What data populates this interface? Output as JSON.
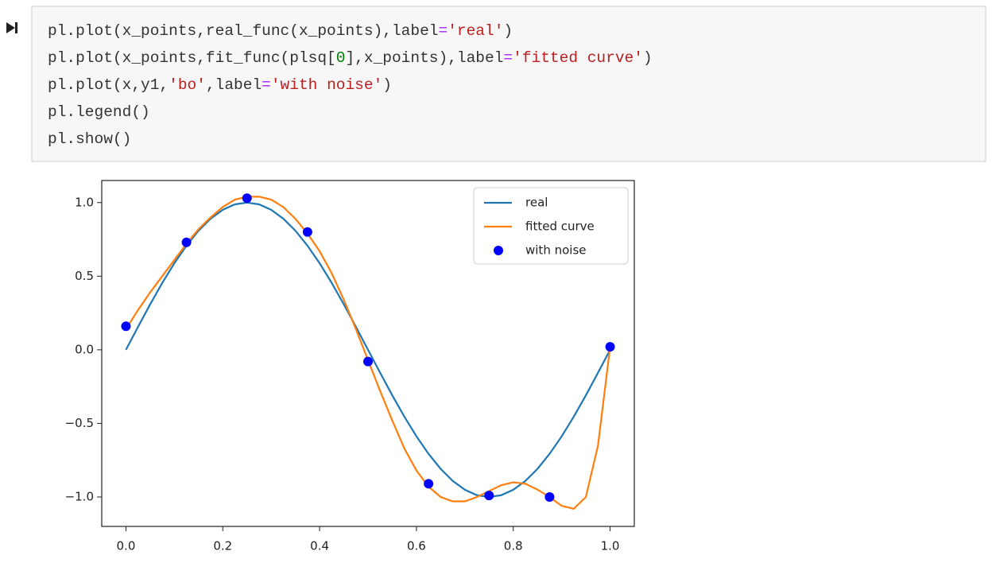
{
  "code": {
    "lines": [
      [
        {
          "text": "pl.plot(x_points,real_func(x_points),label",
          "color": "#333333"
        },
        {
          "text": "=",
          "color": "#aa22ff"
        },
        {
          "text": "'real'",
          "color": "#ba2121"
        },
        {
          "text": ")",
          "color": "#333333"
        }
      ],
      [
        {
          "text": "pl.plot(x_points,fit_func(plsq[",
          "color": "#333333"
        },
        {
          "text": "0",
          "color": "#008000"
        },
        {
          "text": "],x_points),label",
          "color": "#333333"
        },
        {
          "text": "=",
          "color": "#aa22ff"
        },
        {
          "text": "'fitted curve'",
          "color": "#ba2121"
        },
        {
          "text": ")",
          "color": "#333333"
        }
      ],
      [
        {
          "text": "pl.plot(x,y1,",
          "color": "#333333"
        },
        {
          "text": "'bo'",
          "color": "#ba2121"
        },
        {
          "text": ",label",
          "color": "#333333"
        },
        {
          "text": "=",
          "color": "#aa22ff"
        },
        {
          "text": "'with noise'",
          "color": "#ba2121"
        },
        {
          "text": ")",
          "color": "#333333"
        }
      ],
      [
        {
          "text": "pl.legend()",
          "color": "#333333"
        }
      ],
      [
        {
          "text": "pl.show()",
          "color": "#333333"
        }
      ]
    ]
  },
  "chart_data": {
    "type": "line",
    "xlim": [
      -0.05,
      1.05
    ],
    "ylim": [
      -1.2,
      1.15
    ],
    "xticks": [
      {
        "value": 0,
        "label": "0.0"
      },
      {
        "value": 0.2,
        "label": "0.2"
      },
      {
        "value": 0.4,
        "label": "0.4"
      },
      {
        "value": 0.6,
        "label": "0.6"
      },
      {
        "value": 0.8,
        "label": "0.8"
      },
      {
        "value": 1,
        "label": "1.0"
      }
    ],
    "yticks": [
      {
        "value": 1,
        "label": "1.0"
      },
      {
        "value": 0.5,
        "label": "0.5"
      },
      {
        "value": 0,
        "label": "0.0"
      },
      {
        "value": -0.5,
        "label": "−0.5"
      },
      {
        "value": -1,
        "label": "−1.0"
      }
    ],
    "legend": "upper right",
    "series": [
      {
        "name": "real",
        "type": "line",
        "color": "#1f77b4",
        "x": [
          0,
          0.025,
          0.05,
          0.075,
          0.1,
          0.125,
          0.15,
          0.175,
          0.2,
          0.225,
          0.25,
          0.275,
          0.3,
          0.325,
          0.35,
          0.375,
          0.4,
          0.425,
          0.45,
          0.475,
          0.5,
          0.525,
          0.55,
          0.575,
          0.6,
          0.625,
          0.65,
          0.675,
          0.7,
          0.725,
          0.75,
          0.775,
          0.8,
          0.825,
          0.85,
          0.875,
          0.9,
          0.925,
          0.95,
          0.975,
          1
        ],
        "values": [
          0,
          0.156,
          0.309,
          0.454,
          0.588,
          0.707,
          0.809,
          0.891,
          0.951,
          0.988,
          1,
          0.988,
          0.951,
          0.891,
          0.809,
          0.707,
          0.588,
          0.454,
          0.309,
          0.156,
          0,
          -0.156,
          -0.309,
          -0.454,
          -0.588,
          -0.707,
          -0.809,
          -0.891,
          -0.951,
          -0.988,
          -1,
          -0.988,
          -0.951,
          -0.891,
          -0.809,
          -0.707,
          -0.588,
          -0.454,
          -0.309,
          -0.156,
          0
        ]
      },
      {
        "name": "fitted curve",
        "type": "line",
        "color": "#ff7f0e",
        "x": [
          0,
          0.025,
          0.05,
          0.075,
          0.1,
          0.125,
          0.15,
          0.175,
          0.2,
          0.225,
          0.25,
          0.275,
          0.3,
          0.325,
          0.35,
          0.375,
          0.4,
          0.425,
          0.45,
          0.475,
          0.5,
          0.525,
          0.55,
          0.575,
          0.6,
          0.625,
          0.65,
          0.675,
          0.7,
          0.725,
          0.75,
          0.775,
          0.8,
          0.825,
          0.85,
          0.875,
          0.9,
          0.925,
          0.95,
          0.975,
          1
        ],
        "values": [
          0.14,
          0.27,
          0.39,
          0.5,
          0.61,
          0.72,
          0.82,
          0.9,
          0.97,
          1.02,
          1.04,
          1.04,
          1.02,
          0.97,
          0.89,
          0.79,
          0.67,
          0.52,
          0.34,
          0.14,
          -0.07,
          -0.28,
          -0.48,
          -0.67,
          -0.82,
          -0.93,
          -1,
          -1.03,
          -1.03,
          -1,
          -0.96,
          -0.92,
          -0.9,
          -0.91,
          -0.95,
          -1,
          -1.06,
          -1.08,
          -1,
          -0.65,
          0.02
        ]
      },
      {
        "name": "with noise",
        "type": "scatter",
        "color": "#0000ff",
        "x": [
          0,
          0.125,
          0.25,
          0.375,
          0.5,
          0.625,
          0.75,
          0.875,
          1
        ],
        "values": [
          0.16,
          0.73,
          1.03,
          0.8,
          -0.08,
          -0.91,
          -0.99,
          -1,
          0.02
        ]
      }
    ]
  }
}
